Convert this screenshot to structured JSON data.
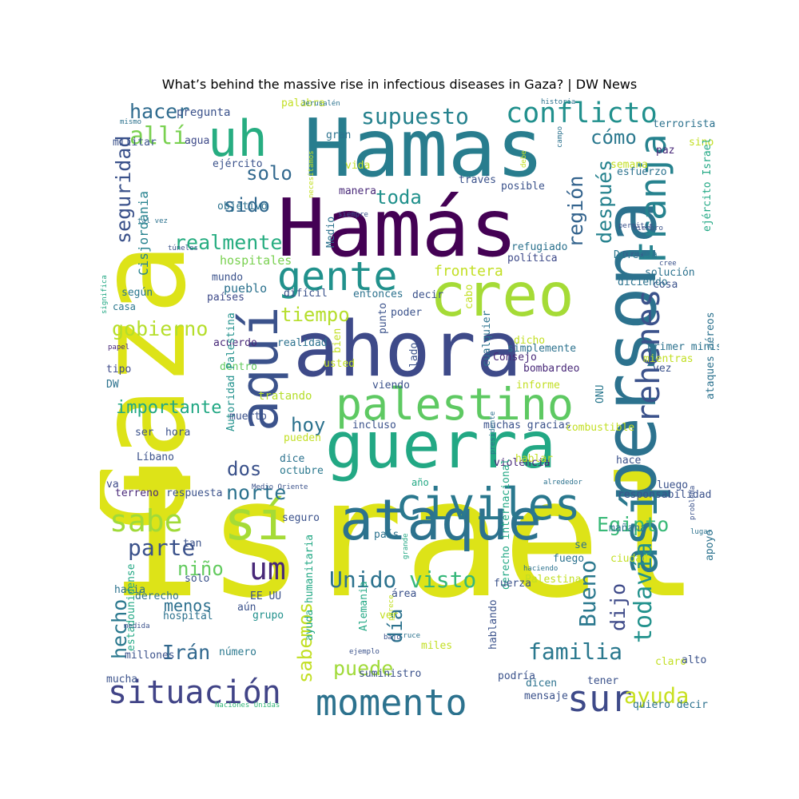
{
  "title": "What’s behind the massive rise in infectious diseases in Gaza?  | DW News",
  "words": [
    {
      "text": "Israel",
      "color": "#dde318"
    },
    {
      "text": "Gaza",
      "color": "#dde318"
    },
    {
      "text": "Hamas",
      "color": "#287d8e"
    },
    {
      "text": "Hamás",
      "color": "#440154"
    },
    {
      "text": "ahora",
      "color": "#3e4a89"
    },
    {
      "text": "persona",
      "color": "#2c728e"
    },
    {
      "text": "guerra",
      "color": "#22a884"
    },
    {
      "text": "ataque",
      "color": "#2c728e"
    },
    {
      "text": "aquí",
      "color": "#3b528b"
    },
    {
      "text": "creo",
      "color": "#a5db36"
    },
    {
      "text": "así",
      "color": "#2a788e"
    },
    {
      "text": "sí",
      "color": "#a5db36"
    },
    {
      "text": "uh",
      "color": "#27ad81"
    },
    {
      "text": "palestino",
      "color": "#5ec962"
    },
    {
      "text": "civiles",
      "color": "#2a788e"
    },
    {
      "text": "Franja",
      "color": "#26828e"
    },
    {
      "text": "gente",
      "color": "#21918c"
    },
    {
      "text": "rehenes",
      "color": "#3b528b"
    },
    {
      "text": "momento",
      "color": "#2c728e"
    },
    {
      "text": "situación",
      "color": "#414487"
    },
    {
      "text": "sur",
      "color": "#3e4a89"
    },
    {
      "text": "conflicto",
      "color": "#21908d"
    },
    {
      "text": "um",
      "color": "#482878"
    },
    {
      "text": "sabe",
      "color": "#a0da39"
    },
    {
      "text": "allí",
      "color": "#7ad151"
    },
    {
      "text": "supuesto",
      "color": "#26828e"
    },
    {
      "text": "familia",
      "color": "#2a788e"
    },
    {
      "text": "todavía",
      "color": "#21918c"
    },
    {
      "text": "Unido",
      "color": "#2c728e"
    },
    {
      "text": "visto",
      "color": "#35b779"
    },
    {
      "text": "parte",
      "color": "#3b528b"
    },
    {
      "text": "Bueno",
      "color": "#2a788e"
    },
    {
      "text": "ayuda",
      "color": "#c8e020"
    },
    {
      "text": "hacer",
      "color": "#2f6b8e"
    },
    {
      "text": "realmente",
      "color": "#27ad81"
    },
    {
      "text": "gobierno",
      "color": "#b5de2b"
    },
    {
      "text": "seguridad",
      "color": "#3b528b"
    },
    {
      "text": "después",
      "color": "#26828e"
    },
    {
      "text": "Egipto",
      "color": "#38b977"
    },
    {
      "text": "región",
      "color": "#33638d"
    },
    {
      "text": "hecho",
      "color": "#2a788e"
    },
    {
      "text": "norte",
      "color": "#2c728e"
    },
    {
      "text": "sabemos",
      "color": "#c2df23"
    },
    {
      "text": "dijo",
      "color": "#3e4a89"
    },
    {
      "text": "día",
      "color": "#2c728e"
    },
    {
      "text": "puede",
      "color": "#a0da39"
    },
    {
      "text": "Irán",
      "color": "#31688e"
    },
    {
      "text": "hoy",
      "color": "#2c728e"
    },
    {
      "text": "dos",
      "color": "#3b528b"
    },
    {
      "text": "toda",
      "color": "#21918c"
    },
    {
      "text": "solo",
      "color": "#31688e"
    },
    {
      "text": "sido",
      "color": "#31688e"
    },
    {
      "text": "tiempo",
      "color": "#b5de2b"
    },
    {
      "text": "cómo",
      "color": "#2a788e"
    },
    {
      "text": "niño",
      "color": "#63cb5f"
    },
    {
      "text": "importante",
      "color": "#22a884"
    },
    {
      "text": "frontera",
      "color": "#c2df23"
    },
    {
      "text": "menos",
      "color": "#2d708e"
    },
    {
      "text": "pregunta",
      "color": "#3b528b"
    },
    {
      "text": "militar",
      "color": "#3b528b"
    },
    {
      "text": "agua",
      "color": "#3e4a89"
    },
    {
      "text": "Cisjordania",
      "color": "#26828e"
    },
    {
      "text": "hospitales",
      "color": "#7ad151"
    },
    {
      "text": "mundo",
      "color": "#3b528b"
    },
    {
      "text": "pueblo",
      "color": "#2c728e"
    },
    {
      "text": "según",
      "color": "#2a788e"
    },
    {
      "text": "casa",
      "color": "#2a788e"
    },
    {
      "text": "países",
      "color": "#3e4a89"
    },
    {
      "text": "acuerdo",
      "color": "#482878"
    },
    {
      "text": "realidad",
      "color": "#2c728e"
    },
    {
      "text": "dentro",
      "color": "#63cb5f"
    },
    {
      "text": "Autoridad Palestina",
      "color": "#21918c"
    },
    {
      "text": "tipo",
      "color": "#3e4a89"
    },
    {
      "text": "DW",
      "color": "#2c728e"
    },
    {
      "text": "muerto",
      "color": "#3b528b"
    },
    {
      "text": "tratando",
      "color": "#b5de2b"
    },
    {
      "text": "pueden",
      "color": "#c2df23"
    },
    {
      "text": "ser",
      "color": "#3b528b"
    },
    {
      "text": "hora",
      "color": "#3b528b"
    },
    {
      "text": "Líbano",
      "color": "#3b528b"
    },
    {
      "text": "dice",
      "color": "#2c728e"
    },
    {
      "text": "octubre",
      "color": "#2a788e"
    },
    {
      "text": "va",
      "color": "#3e4a89"
    },
    {
      "text": "terreno",
      "color": "#482878"
    },
    {
      "text": "respuesta",
      "color": "#3b528b"
    },
    {
      "text": "Medio Oriente",
      "color": "#3b528b"
    },
    {
      "text": "año",
      "color": "#22a884"
    },
    {
      "text": "seguro",
      "color": "#3b528b"
    },
    {
      "text": "país",
      "color": "#2c728e"
    },
    {
      "text": "tan",
      "color": "#3b528b"
    },
    {
      "text": "grande",
      "color": "#22a884"
    },
    {
      "text": "solo",
      "color": "#3b528b"
    },
    {
      "text": "derecho",
      "color": "#2c728e"
    },
    {
      "text": "EE UU",
      "color": "#3b528b"
    },
    {
      "text": "hacia",
      "color": "#2c728e"
    },
    {
      "text": "estadounidense",
      "color": "#22a884"
    },
    {
      "text": "hospital",
      "color": "#2c728e"
    },
    {
      "text": "aún",
      "color": "#3b528b"
    },
    {
      "text": "grupo",
      "color": "#21918c"
    },
    {
      "text": "ayuda humanitaria",
      "color": "#22a884"
    },
    {
      "text": "medida",
      "color": "#3b528b"
    },
    {
      "text": "millones",
      "color": "#3b528b"
    },
    {
      "text": "número",
      "color": "#2a788e"
    },
    {
      "text": "mucha",
      "color": "#3b528b"
    },
    {
      "text": "Naciones Unidas",
      "color": "#35b779"
    },
    {
      "text": "palabra",
      "color": "#c2df23"
    },
    {
      "text": "Jerusalén",
      "color": "#2c728e"
    },
    {
      "text": "necesitamos",
      "color": "#c2df23"
    },
    {
      "text": "gran",
      "color": "#2c728e"
    },
    {
      "text": "ejército",
      "color": "#3b528b"
    },
    {
      "text": "vida",
      "color": "#c2df23"
    },
    {
      "text": "manera",
      "color": "#482878"
    },
    {
      "text": "través",
      "color": "#3b528b"
    },
    {
      "text": "Medio",
      "color": "#2c728e"
    },
    {
      "text": "siempre",
      "color": "#3b528b"
    },
    {
      "text": "objetivo",
      "color": "#2c728e"
    },
    {
      "text": "tal vez",
      "color": "#2c728e"
    },
    {
      "text": "túneles",
      "color": "#3b528b"
    },
    {
      "text": "significa",
      "color": "#22a884"
    },
    {
      "text": "papel",
      "color": "#482878"
    },
    {
      "text": "mismo",
      "color": "#2c728e"
    },
    {
      "text": "historia",
      "color": "#2c728e"
    },
    {
      "text": "campo",
      "color": "#2c728e"
    },
    {
      "text": "debe",
      "color": "#c2df23"
    },
    {
      "text": "posible",
      "color": "#3b528b"
    },
    {
      "text": "refugiado",
      "color": "#2c728e"
    },
    {
      "text": "política",
      "color": "#3e4a89"
    },
    {
      "text": "semana",
      "color": "#c2df23"
    },
    {
      "text": "terrorista",
      "color": "#2c728e"
    },
    {
      "text": "sino",
      "color": "#c2df23"
    },
    {
      "text": "paz",
      "color": "#482878"
    },
    {
      "text": "esfuerzo",
      "color": "#2c728e"
    },
    {
      "text": "permitir",
      "color": "#3b528b"
    },
    {
      "text": "miembro",
      "color": "#3b528b"
    },
    {
      "text": "ejército Israel",
      "color": "#22a884"
    },
    {
      "text": "forma",
      "color": "#3b528b"
    },
    {
      "text": "Defensa",
      "color": "#2a788e"
    },
    {
      "text": "cree",
      "color": "#3b528b"
    },
    {
      "text": "solución",
      "color": "#2c728e"
    },
    {
      "text": "cosa",
      "color": "#3b528b"
    },
    {
      "text": "diciendo",
      "color": "#2c728e"
    },
    {
      "text": "difícil",
      "color": "#3b528b"
    },
    {
      "text": "entonces",
      "color": "#2c728e"
    },
    {
      "text": "punto",
      "color": "#3b528b"
    },
    {
      "text": "decir",
      "color": "#3b528b"
    },
    {
      "text": "cabo",
      "color": "#c2df23"
    },
    {
      "text": "poder",
      "color": "#3b528b"
    },
    {
      "text": "bien",
      "color": "#c2df23"
    },
    {
      "text": "lado",
      "color": "#3b528b"
    },
    {
      "text": "cualquier",
      "color": "#2c728e"
    },
    {
      "text": "simplemente",
      "color": "#2c728e"
    },
    {
      "text": "Consejo",
      "color": "#482878"
    },
    {
      "text": "dicho",
      "color": "#c2df23"
    },
    {
      "text": "bombardeo",
      "color": "#482878"
    },
    {
      "text": "ONU",
      "color": "#2a788e"
    },
    {
      "text": "ataques aéreos",
      "color": "#2c728e"
    },
    {
      "text": "primer ministro",
      "color": "#2c728e"
    },
    {
      "text": "mientras",
      "color": "#c2df23"
    },
    {
      "text": "vez",
      "color": "#3b528b"
    },
    {
      "text": "usted",
      "color": "#c2df23"
    },
    {
      "text": "viendo",
      "color": "#3b528b"
    },
    {
      "text": "informe",
      "color": "#c2df23"
    },
    {
      "text": "incluso",
      "color": "#3b528b"
    },
    {
      "text": "muchas gracias",
      "color": "#3b528b"
    },
    {
      "text": "combustible",
      "color": "#c2df23"
    },
    {
      "text": "violencia",
      "color": "#482878"
    },
    {
      "text": "presidente",
      "color": "#2c728e"
    },
    {
      "text": "hace",
      "color": "#3b528b"
    },
    {
      "text": "hablar",
      "color": "#c2df23"
    },
    {
      "text": "alrededor",
      "color": "#2c728e"
    },
    {
      "text": "luego",
      "color": "#3b528b"
    },
    {
      "text": "responsabilidad",
      "color": "#3b528b"
    },
    {
      "text": "problema",
      "color": "#3b528b"
    },
    {
      "text": "lugar",
      "color": "#2c728e"
    },
    {
      "text": "se",
      "color": "#2c728e"
    },
    {
      "text": "mañana",
      "color": "#2c728e"
    },
    {
      "text": "fuego",
      "color": "#2c728e"
    },
    {
      "text": "ciudad",
      "color": "#c2df23"
    },
    {
      "text": "apoyo",
      "color": "#2c728e"
    },
    {
      "text": "derecho internacional",
      "color": "#22a884"
    },
    {
      "text": "haciendo",
      "color": "#2c728e"
    },
    {
      "text": "Palestina",
      "color": "#c2df23"
    },
    {
      "text": "fuerza",
      "color": "#3b528b"
    },
    {
      "text": "área",
      "color": "#3b528b"
    },
    {
      "text": "ver",
      "color": "#c2df23"
    },
    {
      "text": "hablando",
      "color": "#3b528b"
    },
    {
      "text": "Alemania",
      "color": "#22a884"
    },
    {
      "text": "cruce",
      "color": "#2c728e"
    },
    {
      "text": "parece",
      "color": "#c2df23"
    },
    {
      "text": "bajo",
      "color": "#3b528b"
    },
    {
      "text": "ejemplo",
      "color": "#3b528b"
    },
    {
      "text": "miles",
      "color": "#c2df23"
    },
    {
      "text": "suministro",
      "color": "#3b528b"
    },
    {
      "text": "podría",
      "color": "#3b528b"
    },
    {
      "text": "dicen",
      "color": "#2c728e"
    },
    {
      "text": "mensaje",
      "color": "#3b528b"
    },
    {
      "text": "tener",
      "color": "#3b528b"
    },
    {
      "text": "quiero decir",
      "color": "#2c728e"
    },
    {
      "text": "claro",
      "color": "#c2df23"
    },
    {
      "text": "alto",
      "color": "#3b528b"
    }
  ]
}
